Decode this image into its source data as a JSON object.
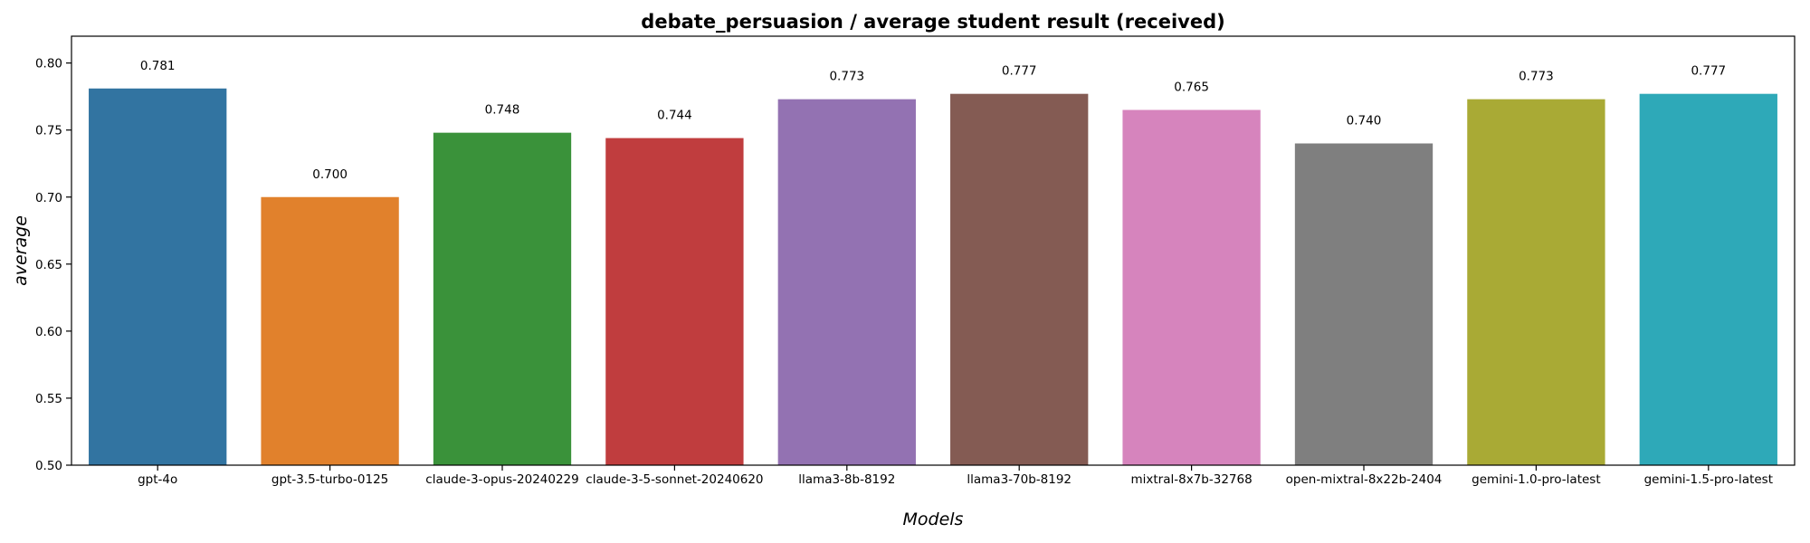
{
  "chart_data": {
    "type": "bar",
    "title": "debate_persuasion / average student result (received)",
    "xlabel": "Models",
    "ylabel": "average",
    "ylim": [
      0.5,
      0.82
    ],
    "yticks": [
      "0.50",
      "0.55",
      "0.60",
      "0.65",
      "0.70",
      "0.75",
      "0.80"
    ],
    "grid": false,
    "categories": [
      "gpt-4o",
      "gpt-3.5-turbo-0125",
      "claude-3-opus-20240229",
      "claude-3-5-sonnet-20240620",
      "llama3-8b-8192",
      "llama3-70b-8192",
      "mixtral-8x7b-32768",
      "open-mixtral-8x22b-2404",
      "gemini-1.0-pro-latest",
      "gemini-1.5-pro-latest"
    ],
    "values": [
      0.781,
      0.7,
      0.748,
      0.744,
      0.773,
      0.777,
      0.765,
      0.74,
      0.773,
      0.777
    ],
    "value_labels": [
      "0.781",
      "0.700",
      "0.748",
      "0.744",
      "0.773",
      "0.777",
      "0.765",
      "0.740",
      "0.773",
      "0.777"
    ],
    "colors": [
      "#3274a1",
      "#e1812c",
      "#3a923a",
      "#c03d3e",
      "#9372b2",
      "#845b53",
      "#d684bd",
      "#7f7f7f",
      "#a9aa35",
      "#2ea9b8"
    ]
  }
}
